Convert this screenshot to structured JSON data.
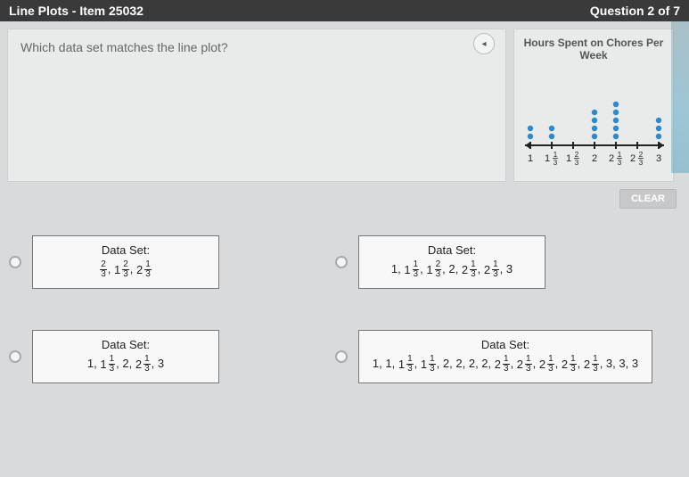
{
  "header": {
    "left": "Line Plots - Item 25032",
    "right": "Question 2 of 7"
  },
  "question": {
    "prompt": "Which data set matches the line plot?"
  },
  "buttons": {
    "clear": "CLEAR"
  },
  "chart": {
    "title": "Hours Spent on Chores Per Week",
    "type": "line-plot",
    "background_color": "#e9eaea",
    "dot_color": "#2a8acb",
    "axis_color": "#222222",
    "tick_labels": [
      "1",
      "1 1/3",
      "1 2/3",
      "2",
      "2 1/3",
      "2 2/3",
      "3"
    ],
    "counts": [
      2,
      2,
      0,
      4,
      5,
      0,
      3
    ],
    "dot_radius": 3.2,
    "xlim": [
      0,
      8
    ],
    "ylim_dots": [
      0,
      5
    ]
  },
  "answers": {
    "label": "Data Set:",
    "options": [
      {
        "id": "A",
        "tokens": [
          "2/3",
          "1 2/3",
          "2 1/3"
        ]
      },
      {
        "id": "B",
        "tokens": [
          "1",
          "1 1/3",
          "1 2/3",
          "2",
          "2 1/3",
          "2 1/3",
          "3"
        ]
      },
      {
        "id": "C",
        "tokens": [
          "1",
          "1 1/3",
          "2",
          "2 1/3",
          "3"
        ]
      },
      {
        "id": "D",
        "tokens": [
          "1",
          "1",
          "1 1/3",
          "1 1/3",
          "2",
          "2",
          "2",
          "2",
          "2 1/3",
          "2 1/3",
          "2 1/3",
          "2 1/3",
          "2 1/3",
          "3",
          "3",
          "3"
        ]
      }
    ]
  }
}
